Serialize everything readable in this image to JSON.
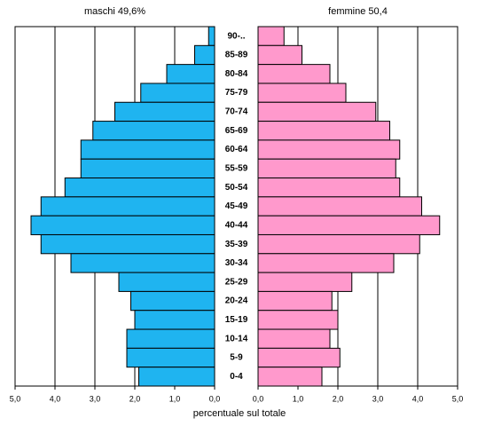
{
  "chart_data": {
    "type": "pyramid",
    "xlabel": "percentuale sul totale",
    "categories": [
      "90-..",
      "85-89",
      "80-84",
      "75-79",
      "70-74",
      "65-69",
      "60-64",
      "55-59",
      "50-54",
      "45-49",
      "40-44",
      "35-39",
      "30-34",
      "25-29",
      "20-24",
      "15-19",
      "10-14",
      "5-9",
      "0-4"
    ],
    "series": [
      {
        "name": "maschi 49,6%",
        "color": "#1fb4f0",
        "side": "left",
        "values": [
          0.15,
          0.5,
          1.2,
          1.85,
          2.5,
          3.05,
          3.35,
          3.35,
          3.75,
          4.35,
          4.6,
          4.35,
          3.6,
          2.4,
          2.1,
          2.0,
          2.2,
          2.2,
          1.9
        ]
      },
      {
        "name": "femmine 50,4",
        "color": "#ff99cc",
        "side": "right",
        "values": [
          0.65,
          1.1,
          1.8,
          2.2,
          2.95,
          3.3,
          3.55,
          3.45,
          3.55,
          4.1,
          4.55,
          4.05,
          3.4,
          2.35,
          1.85,
          2.0,
          1.8,
          2.05,
          1.6
        ]
      }
    ],
    "xlim": [
      0,
      5
    ],
    "xticks": [
      {
        "value": 0,
        "label": "0,0"
      },
      {
        "value": 1,
        "label": "1,0"
      },
      {
        "value": 2,
        "label": "2,0"
      },
      {
        "value": 3,
        "label": "3,0"
      },
      {
        "value": 4,
        "label": "4,0"
      },
      {
        "value": 5,
        "label": "5,0"
      }
    ],
    "grid": true
  }
}
